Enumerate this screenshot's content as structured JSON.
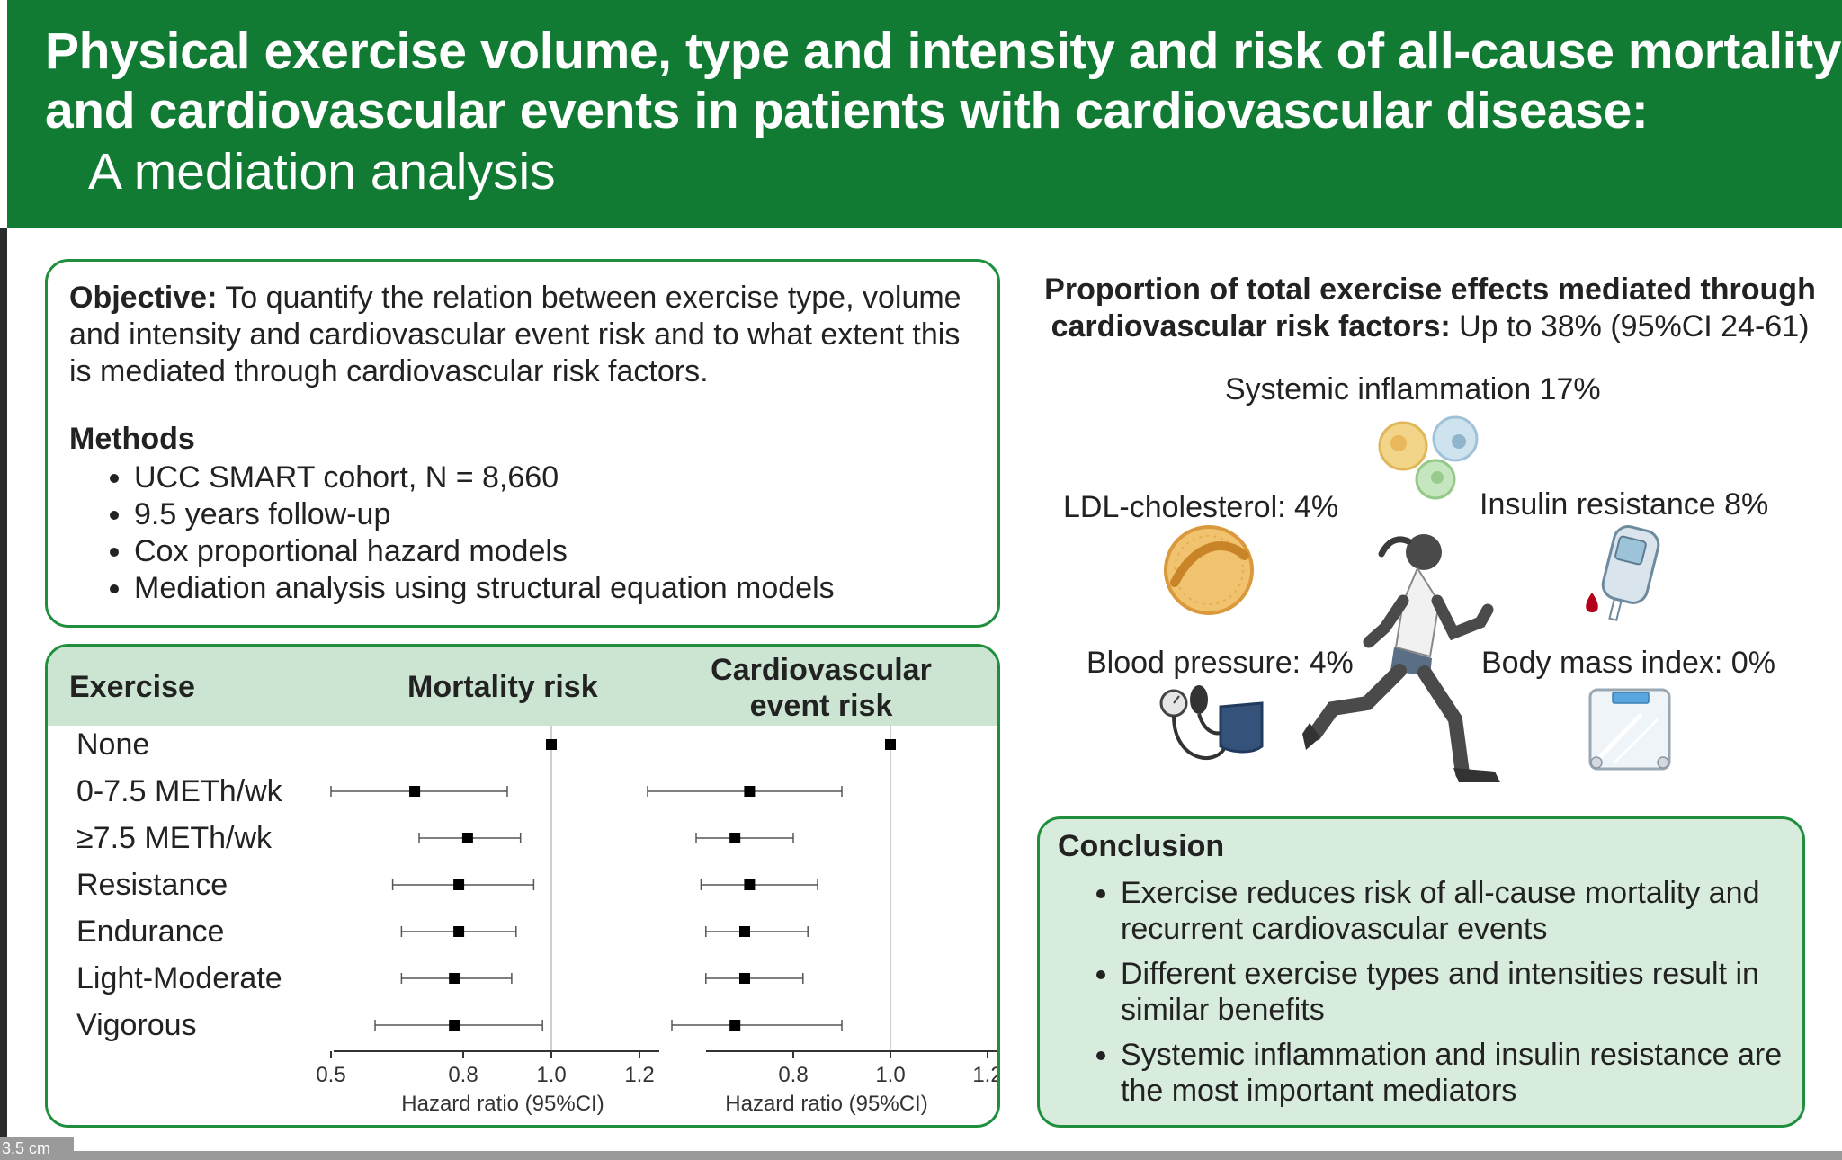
{
  "title": {
    "line1": "Physical exercise volume, type and intensity and risk of all-cause mortality",
    "line2": "and cardiovascular events in patients with cardiovascular disease:",
    "subtitle": "A mediation analysis"
  },
  "objective": {
    "label": "Objective:",
    "text": "To quantify the relation between exercise type, volume and intensity and cardiovascular event risk and to what extent this is mediated through cardiovascular risk factors."
  },
  "methods": {
    "title": "Methods",
    "items": [
      "UCC SMART cohort,  N = 8,660",
      "9.5 years follow-up",
      "Cox proportional hazard models",
      "Mediation analysis using structural equation models"
    ]
  },
  "forest": {
    "header_exercise": "Exercise",
    "header_mortality": "Mortality risk",
    "header_cv": "Cardiovascular event risk",
    "rows": [
      "None",
      "0-7.5 METh/wk",
      "≥7.5 METh/wk",
      "Resistance",
      "Endurance",
      "Light-Moderate",
      "Vigorous"
    ],
    "xlabel_mortality": "Hazard ratio (95%CI)",
    "xlabel_cv": "Hazard ratio (95%CI)"
  },
  "chart_data": [
    {
      "type": "scatter",
      "title": "Mortality risk",
      "xlabel": "Hazard ratio (95%CI)",
      "xlim": [
        0.5,
        1.3
      ],
      "xticks": [
        "0.5",
        "0.8",
        "1.0",
        "1.2"
      ],
      "reference_line": 1.0,
      "categories": [
        "None",
        "0-7.5 METh/wk",
        "≥7.5 METh/wk",
        "Resistance",
        "Endurance",
        "Light-Moderate",
        "Vigorous"
      ],
      "series": [
        {
          "estimate": [
            1.0,
            0.69,
            0.81,
            0.79,
            0.79,
            0.78,
            0.78
          ],
          "lower": [
            null,
            0.5,
            0.7,
            0.64,
            0.66,
            0.66,
            0.6
          ],
          "upper": [
            null,
            0.9,
            0.93,
            0.96,
            0.92,
            0.91,
            0.98
          ]
        }
      ]
    },
    {
      "type": "scatter",
      "title": "Cardiovascular event risk",
      "xlabel": "Hazard ratio (95%CI)",
      "xlim": [
        0.5,
        1.3
      ],
      "xticks": [
        "0.8",
        "1.0",
        "1.2"
      ],
      "reference_line": 1.0,
      "categories": [
        "None",
        "0-7.5 METh/wk",
        "≥7.5 METh/wk",
        "Resistance",
        "Endurance",
        "Light-Moderate",
        "Vigorous"
      ],
      "series": [
        {
          "estimate": [
            1.0,
            0.71,
            0.68,
            0.71,
            0.7,
            0.7,
            0.68
          ],
          "lower": [
            null,
            0.5,
            0.6,
            0.61,
            0.62,
            0.62,
            0.55
          ],
          "upper": [
            null,
            0.9,
            0.8,
            0.85,
            0.83,
            0.82,
            0.9
          ]
        }
      ]
    }
  ],
  "proportion": {
    "title": "Proportion of total exercise effects mediated through cardiovascular risk factors:",
    "value": "Up to 38% (95%CI 24-61)"
  },
  "mediators": {
    "inflammation": "Systemic inflammation 17%",
    "ldl": "LDL-cholesterol: 4%",
    "insulin": "Insulin resistance 8%",
    "bp": "Blood pressure: 4%",
    "bmi": "Body mass index: 0%"
  },
  "conclusion": {
    "title": "Conclusion",
    "items": [
      "Exercise reduces risk of all-cause mortality and recurrent cardiovascular events",
      "Different exercise types and intensities result in similar benefits",
      "Systemic inflammation and insulin resistance are the most important mediators"
    ]
  },
  "corner_tag": "3.5 cm",
  "colors": {
    "banner": "#117a33",
    "border": "#1f8f3e",
    "header_fill": "#cce5d3",
    "conclusion_fill": "#d8ecdd"
  },
  "icons": [
    "immune-cells-icon",
    "lipoprotein-icon",
    "glucometer-icon",
    "blood-pressure-cuff-icon",
    "weighing-scale-icon",
    "runner-icon"
  ]
}
